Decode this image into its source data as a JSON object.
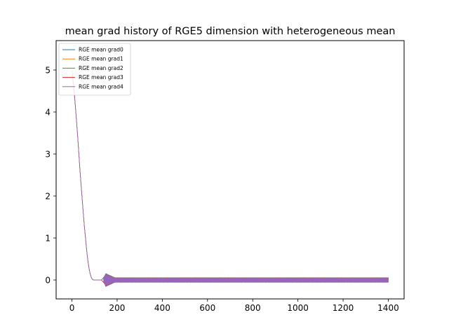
{
  "chart_data": {
    "type": "line",
    "title": "mean grad history of RGE5 dimension with heterogeneous mean",
    "xlabel": "",
    "ylabel": "",
    "xlim": [
      -70,
      1470
    ],
    "ylim": [
      -0.45,
      5.7
    ],
    "xticks": [
      0,
      200,
      400,
      600,
      800,
      1000,
      1200,
      1400
    ],
    "yticks": [
      0,
      1,
      2,
      3,
      4,
      5
    ],
    "grid": false,
    "legend_position": "top-left",
    "x_range": [
      0,
      1400
    ],
    "decay_curve": {
      "x": [
        0,
        5,
        10,
        15,
        20,
        25,
        30,
        35,
        40,
        45,
        50,
        55,
        60,
        65,
        70,
        75,
        80,
        85,
        90,
        95,
        100,
        110,
        120,
        130,
        140
      ],
      "y": [
        5.0,
        4.75,
        4.5,
        4.15,
        3.8,
        3.45,
        3.05,
        2.65,
        2.3,
        1.95,
        1.6,
        1.28,
        1.0,
        0.72,
        0.48,
        0.3,
        0.16,
        0.07,
        0.02,
        0.0,
        0.0,
        0.0,
        0.0,
        0.0,
        0.0
      ]
    },
    "oscillation": {
      "start_x": 140,
      "end_x": 1400,
      "spike_peak_x": 150,
      "spike_amplitude": 0.16,
      "steady_amplitude": 0.06
    },
    "series": [
      {
        "name": "RGE mean grad0",
        "color": "#1f77b4"
      },
      {
        "name": "RGE mean grad1",
        "color": "#ff7f0e"
      },
      {
        "name": "RGE mean grad2",
        "color": "#2ca02c"
      },
      {
        "name": "RGE mean grad3",
        "color": "#d62728"
      },
      {
        "name": "RGE mean grad4",
        "color": "#9467bd"
      }
    ]
  }
}
